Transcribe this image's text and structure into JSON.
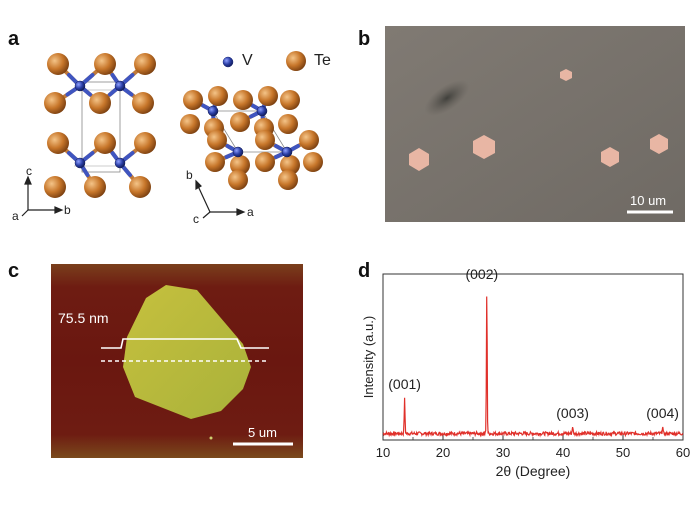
{
  "panels": {
    "a": {
      "letter": "a",
      "legend": {
        "v_label": "V",
        "te_label": "Te"
      },
      "axes_left": {
        "c": "c",
        "a": "a",
        "b": "b"
      },
      "axes_right": {
        "b": "b",
        "c": "c",
        "a": "a"
      },
      "colors": {
        "vanadium": "#2b3fa6",
        "tellurium": "#c7762a"
      }
    },
    "b": {
      "letter": "b",
      "scalebar_label": "10 um",
      "colors": {
        "substrate": "#76706a",
        "flake": "#e8b6a4"
      }
    },
    "c": {
      "letter": "c",
      "height_label": "75.5 nm",
      "scalebar_label": "5 um",
      "colors": {
        "background": "#6e1912",
        "flake": "#b7b83a"
      }
    },
    "d": {
      "letter": "d"
    }
  },
  "chart_data": {
    "type": "line",
    "xlabel": "2θ (Degree)",
    "ylabel": "Intensity (a.u.)",
    "xlim": [
      10,
      60
    ],
    "xticks": [
      10,
      20,
      30,
      40,
      50,
      60
    ],
    "color": "#e0302a",
    "baseline": 1.0,
    "peaks": [
      {
        "x": 13.6,
        "y": 14,
        "label": "(001)"
      },
      {
        "x": 27.3,
        "y": 58,
        "label": "(002)"
      },
      {
        "x": 41.6,
        "y": 3,
        "label": "(003)"
      },
      {
        "x": 56.6,
        "y": 3,
        "label": "(004)"
      }
    ],
    "ylim": [
      0,
      65
    ]
  }
}
